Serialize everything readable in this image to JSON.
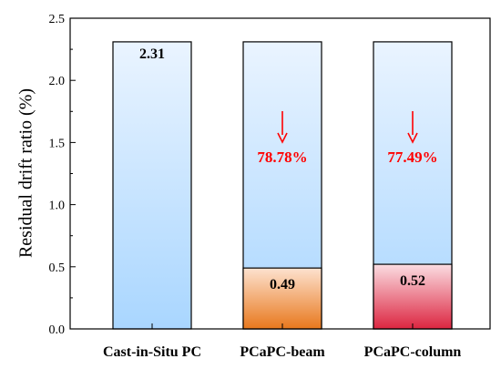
{
  "chart_data": {
    "type": "bar",
    "title": "",
    "xlabel": "",
    "ylabel": "Residual  drift ratio (%)",
    "ylim": [
      0,
      2.5
    ],
    "yticks": [
      "0.0",
      "0.5",
      "1.0",
      "1.5",
      "2.0",
      "2.5"
    ],
    "grid": false,
    "legend": "none",
    "categories": [
      "Cast-in-Situ PC",
      "PCaPC-beam",
      "PCaPC-column"
    ],
    "reference_values": [
      2.31,
      2.31,
      2.31
    ],
    "values": [
      2.31,
      0.49,
      0.52
    ],
    "value_labels": [
      "2.31",
      "0.49",
      "0.52"
    ],
    "reductions": [
      null,
      "78.78%",
      "77.49%"
    ],
    "colors": {
      "reference_fill_top": "#eaf4ff",
      "reference_fill_bottom": "#a9d6ff",
      "beam_fill_top": "#fde2cf",
      "beam_fill_bottom": "#e8781d",
      "column_fill_top": "#fbdde2",
      "column_fill_bottom": "#dc2540",
      "reduction_text": "#ff0000",
      "arrow": "#ff0000"
    },
    "icons": [
      "down-arrow-icon"
    ]
  }
}
